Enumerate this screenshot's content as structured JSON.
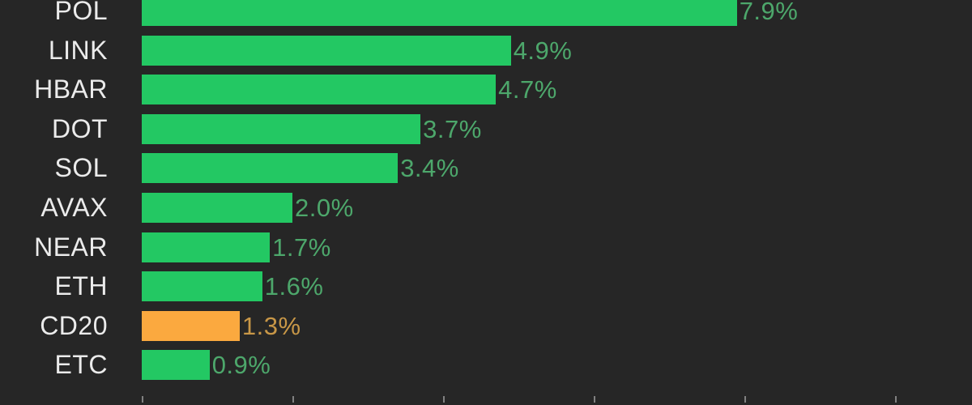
{
  "chart_data": {
    "type": "bar",
    "orientation": "horizontal",
    "title": "",
    "categories": [
      "POL",
      "LINK",
      "HBAR",
      "DOT",
      "SOL",
      "AVAX",
      "NEAR",
      "ETH",
      "CD20",
      "ETC"
    ],
    "values": [
      7.9,
      4.9,
      4.7,
      3.7,
      3.4,
      2.0,
      1.7,
      1.6,
      1.3,
      0.9
    ],
    "value_labels": [
      "7.9%",
      "4.9%",
      "4.7%",
      "3.7%",
      "3.4%",
      "2.0%",
      "1.7%",
      "1.6%",
      "1.3%",
      "0.9%"
    ],
    "bar_colors": [
      "green",
      "green",
      "green",
      "green",
      "green",
      "green",
      "green",
      "green",
      "orange",
      "green"
    ],
    "highlight_category": "CD20",
    "xlim": [
      0,
      11
    ],
    "x_ticks": [
      0,
      2,
      4,
      6,
      8,
      10
    ],
    "grid": false,
    "legend": false
  },
  "colors": {
    "background": "#262626",
    "bar_green": "#23c863",
    "bar_orange": "#fba93f",
    "value_green": "#4da76b",
    "value_orange": "#c89747",
    "ticker_text": "#ebebeb",
    "tick_mark": "#a0a0a0"
  }
}
